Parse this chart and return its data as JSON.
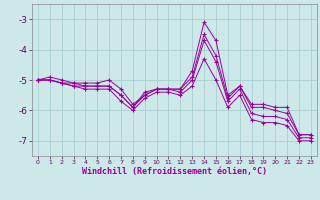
{
  "xlabel": "Windchill (Refroidissement éolien,°C)",
  "x": [
    0,
    1,
    2,
    3,
    4,
    5,
    6,
    7,
    8,
    9,
    10,
    11,
    12,
    13,
    14,
    15,
    16,
    17,
    18,
    19,
    20,
    21,
    22,
    23
  ],
  "lines": [
    [
      -5.0,
      -5.0,
      -5.1,
      -5.1,
      -5.1,
      -5.1,
      -5.0,
      -5.3,
      -5.8,
      -5.5,
      -5.3,
      -5.3,
      -5.3,
      -4.7,
      -3.1,
      -3.7,
      -5.5,
      -5.2,
      -5.8,
      -5.8,
      -5.9,
      -5.9,
      -6.8,
      -6.8
    ],
    [
      -5.0,
      -5.0,
      -5.1,
      -5.2,
      -5.2,
      -5.2,
      -5.2,
      -5.5,
      -5.9,
      -5.5,
      -5.3,
      -5.3,
      -5.4,
      -5.0,
      -3.7,
      -4.4,
      -5.7,
      -5.3,
      -6.1,
      -6.2,
      -6.2,
      -6.3,
      -6.9,
      -6.9
    ],
    [
      -5.0,
      -5.0,
      -5.1,
      -5.2,
      -5.3,
      -5.3,
      -5.3,
      -5.7,
      -6.0,
      -5.6,
      -5.4,
      -5.4,
      -5.5,
      -5.2,
      -4.3,
      -5.0,
      -5.9,
      -5.5,
      -6.3,
      -6.4,
      -6.4,
      -6.5,
      -7.0,
      -7.0
    ],
    [
      -5.0,
      -4.9,
      -5.0,
      -5.1,
      -5.2,
      -5.2,
      -5.2,
      -5.5,
      -5.9,
      -5.4,
      -5.3,
      -5.3,
      -5.3,
      -4.9,
      -3.5,
      -4.2,
      -5.6,
      -5.2,
      -5.9,
      -5.9,
      -6.0,
      -6.1,
      -6.8,
      -6.8
    ]
  ],
  "line_color": "#990099",
  "background_color": "#cce8e8",
  "grid_color": "#aacece",
  "yticks": [
    -7,
    -6,
    -5,
    -4,
    -3
  ],
  "ylim": [
    -7.5,
    -2.5
  ],
  "xlim": [
    -0.5,
    23.5
  ]
}
